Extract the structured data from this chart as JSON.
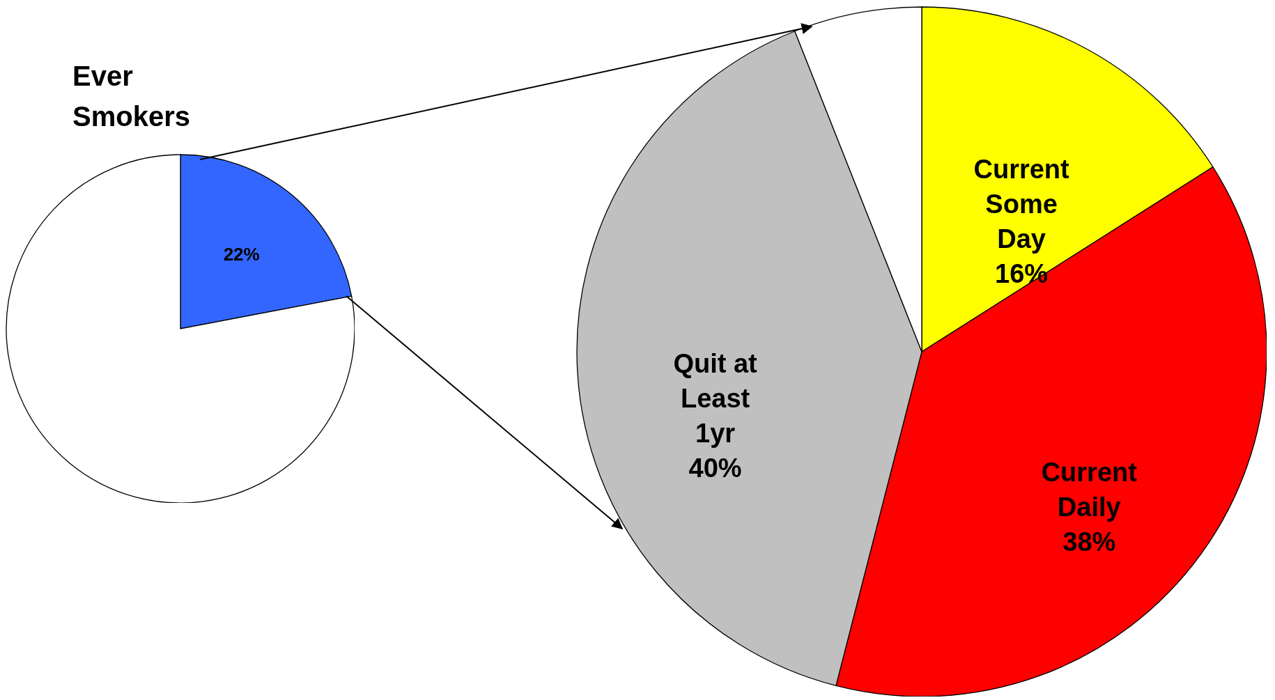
{
  "chart_data": [
    {
      "type": "pie",
      "title": "Ever Smokers",
      "categories": [
        null,
        null
      ],
      "values": [
        22,
        78
      ],
      "colors": [
        "#3366ff",
        "#ffffff"
      ],
      "value_labels": [
        "22%",
        null
      ]
    },
    {
      "type": "pie",
      "categories": [
        "Current Some Day",
        "Current Daily",
        "Quit at Least 1yr",
        null
      ],
      "values": [
        16,
        38,
        40,
        6
      ],
      "colors": [
        "#ffff00",
        "#ff0000",
        "#c0c0c0",
        "#ffffff"
      ],
      "value_labels": [
        "16%",
        "38%",
        "40%",
        null
      ]
    }
  ]
}
